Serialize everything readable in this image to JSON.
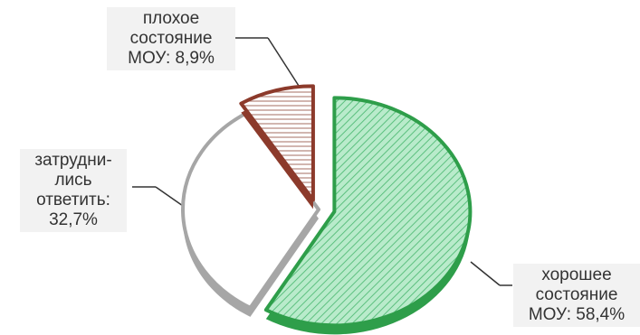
{
  "chart_data": {
    "type": "pie",
    "slices": [
      {
        "lines": [
          "хорошее",
          "состояние",
          "МОУ: 58,4%"
        ],
        "value": 58.4,
        "color": "#2e9e4a",
        "fill": "#9be0b4",
        "pattern": "diagonal-hatch",
        "exploded": true
      },
      {
        "lines": [
          "затрудни-",
          "лись",
          "ответить:",
          "32,7%"
        ],
        "value": 32.7,
        "color": "#a6a6a6",
        "fill": "#ffffff",
        "pattern": "none",
        "exploded": false
      },
      {
        "lines": [
          "плохое",
          "состояние",
          "МОУ: 8,9%"
        ],
        "value": 8.9,
        "color": "#8c3a2b",
        "fill": "#f7e6e2",
        "pattern": "horizontal-hatch",
        "exploded": true
      }
    ],
    "legend": "none",
    "label_background": "#f2f2f2"
  }
}
